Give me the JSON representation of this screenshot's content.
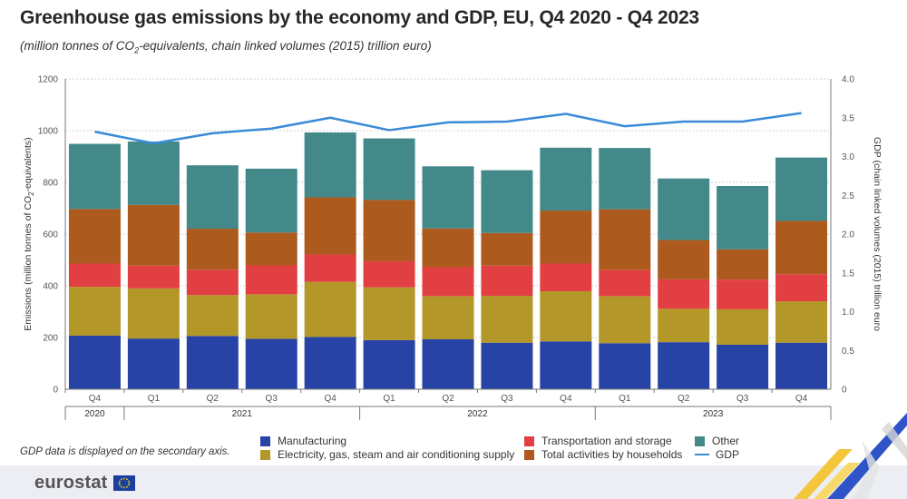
{
  "title": "Greenhouse gas emissions by the economy and GDP, EU, Q4 2020 - Q4 2023",
  "subtitle": {
    "before_sub": "(million tonnes of CO",
    "sub": "2",
    "after_sub": "-equivalents, chain linked volumes (2015) trillion euro)"
  },
  "footnote": "GDP data is displayed on the secondary axis.",
  "logo": {
    "text": "eurostat"
  },
  "colors": {
    "manufacturing": "#2843a6",
    "electricity": "#b39728",
    "transport": "#e23f43",
    "households": "#ac5a1d",
    "other": "#44898a",
    "gdp": "#3a8ad8"
  },
  "chart_data": {
    "type": "bar",
    "stacked": true,
    "categories": [
      "Q4",
      "Q1",
      "Q2",
      "Q3",
      "Q4",
      "Q1",
      "Q2",
      "Q3",
      "Q4",
      "Q1",
      "Q2",
      "Q3",
      "Q4"
    ],
    "year_groups": [
      {
        "label": "2020",
        "count": 1
      },
      {
        "label": "2021",
        "count": 4
      },
      {
        "label": "2022",
        "count": 4
      },
      {
        "label": "2023",
        "count": 4
      }
    ],
    "series": [
      {
        "name": "Manufacturing",
        "key": "manufacturing",
        "values": [
          207,
          196,
          206,
          195,
          202,
          190,
          193,
          180,
          185,
          178,
          182,
          172,
          180
        ]
      },
      {
        "name": "Electricity, gas, steam and air conditioning supply",
        "key": "electricity",
        "values": [
          189,
          194,
          158,
          172,
          213,
          204,
          167,
          181,
          194,
          182,
          129,
          137,
          160
        ]
      },
      {
        "name": "Transportation and storage",
        "key": "transport",
        "values": [
          90,
          88,
          98,
          112,
          106,
          101,
          112,
          117,
          107,
          101,
          114,
          115,
          105
        ]
      },
      {
        "name": "Total activities by households",
        "key": "households",
        "values": [
          211,
          235,
          159,
          127,
          221,
          237,
          150,
          126,
          205,
          235,
          152,
          117,
          206
        ]
      },
      {
        "name": "Other",
        "key": "other",
        "values": [
          252,
          245,
          245,
          247,
          251,
          238,
          240,
          243,
          243,
          237,
          238,
          245,
          245
        ]
      }
    ],
    "line_series": {
      "name": "GDP",
      "key": "gdp",
      "axis": "secondary",
      "values": [
        3.32,
        3.17,
        3.3,
        3.36,
        3.5,
        3.34,
        3.44,
        3.45,
        3.55,
        3.39,
        3.45,
        3.45,
        3.56
      ]
    },
    "y_axis": {
      "title_before": "Emissions (million tonnes of CO",
      "title_sub": "2",
      "title_after": "-equivalents)",
      "min": 0,
      "max": 1200,
      "ticks": [
        "0",
        "200",
        "400",
        "600",
        "800",
        "1000",
        "1200"
      ]
    },
    "y2_axis": {
      "title": "GDP (chain linked volumes (2015) trillion euro",
      "min": 0,
      "max": 4,
      "ticks": [
        "0",
        "0.5",
        "1.0",
        "1.5",
        "2.0",
        "2.5",
        "3.0",
        "3.5",
        "4.0"
      ]
    },
    "legend_position": "bottom",
    "grid": true
  },
  "legend": [
    {
      "label": "Manufacturing",
      "key": "manufacturing",
      "kind": "box"
    },
    {
      "label": "Electricity, gas, steam and air conditioning supply",
      "key": "electricity",
      "kind": "box"
    },
    {
      "label": "Transportation and storage",
      "key": "transport",
      "kind": "box"
    },
    {
      "label": "Total activities by households",
      "key": "households",
      "kind": "box"
    },
    {
      "label": "Other",
      "key": "other",
      "kind": "box"
    },
    {
      "label": "GDP",
      "key": "gdp",
      "kind": "line"
    }
  ]
}
